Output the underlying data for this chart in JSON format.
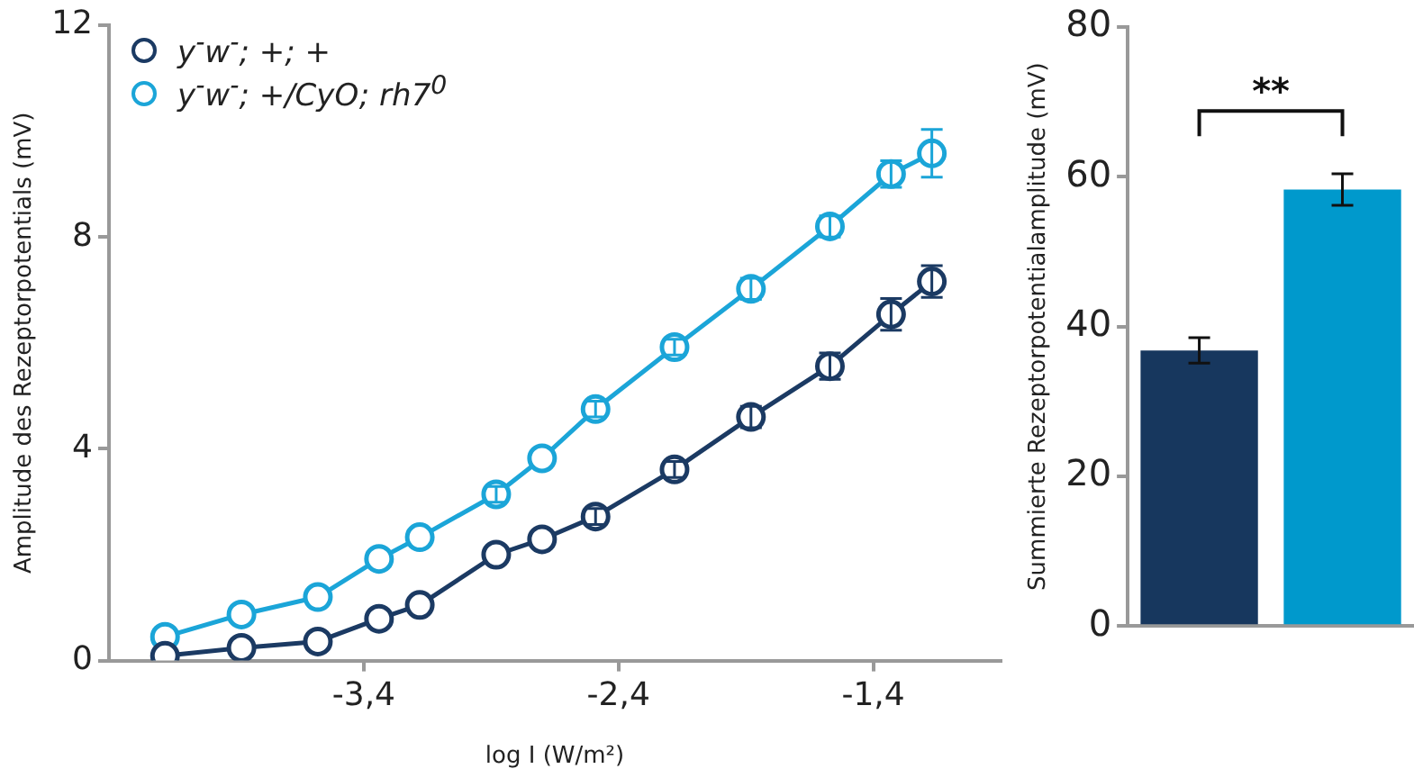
{
  "chart_data": [
    {
      "type": "line",
      "xlabel": "log I (W/m²)",
      "ylabel": "Amplitude des Rezeptorpotentials (mV)",
      "x": [
        -4.18,
        -3.88,
        -3.58,
        -3.34,
        -3.18,
        -2.88,
        -2.7,
        -2.49,
        -2.18,
        -1.88,
        -1.57,
        -1.33,
        -1.17
      ],
      "xlim": [
        -4.4,
        -0.9
      ],
      "xticks": [
        {
          "value": -3.4,
          "label": "-3,4"
        },
        {
          "value": -2.4,
          "label": "-2,4"
        },
        {
          "value": -1.4,
          "label": "-1,4"
        }
      ],
      "ylim": [
        0,
        12
      ],
      "yticks": [
        0,
        4,
        8,
        12
      ],
      "legend": "top left",
      "marker": "circle",
      "line_style": "solid",
      "series": [
        {
          "name": "y$^{-}$w$^{-}$; +; +",
          "color": "#1b3a63",
          "values": [
            0.09,
            0.24,
            0.36,
            0.79,
            1.05,
            2.0,
            2.29,
            2.72,
            3.61,
            4.6,
            5.56,
            6.54,
            7.16
          ],
          "errors": [
            null,
            null,
            null,
            null,
            null,
            null,
            null,
            0.15,
            0.15,
            0.2,
            0.25,
            0.3,
            0.3
          ]
        },
        {
          "name": "y$^{-}$w$^{-}$; +/CyO; rh7$^{0}$",
          "color": "#1ba5d8",
          "values": [
            0.45,
            0.87,
            1.2,
            1.92,
            2.33,
            3.14,
            3.82,
            4.75,
            5.92,
            7.02,
            8.2,
            9.19,
            9.58
          ],
          "errors": [
            null,
            null,
            null,
            null,
            null,
            0.15,
            null,
            0.15,
            0.15,
            0.2,
            0.2,
            0.25,
            0.45
          ]
        }
      ]
    },
    {
      "type": "bar",
      "ylabel": "Summierte Rezeptorpotentialamplitude (mV)",
      "categories": [
        null,
        null
      ],
      "values": [
        36.8,
        58.3
      ],
      "errors": [
        1.7,
        2.1
      ],
      "colors": [
        "#17375e",
        "#0099cc"
      ],
      "ylim": [
        0,
        80
      ],
      "yticks": [
        0,
        20,
        40,
        60,
        80
      ],
      "annotations": [
        "**"
      ]
    }
  ]
}
